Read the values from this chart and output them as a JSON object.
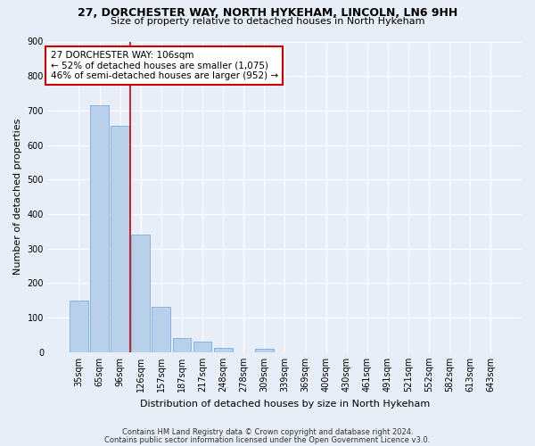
{
  "title1": "27, DORCHESTER WAY, NORTH HYKEHAM, LINCOLN, LN6 9HH",
  "title2": "Size of property relative to detached houses in North Hykeham",
  "xlabel": "Distribution of detached houses by size in North Hykeham",
  "ylabel": "Number of detached properties",
  "footnote1": "Contains HM Land Registry data © Crown copyright and database right 2024.",
  "footnote2": "Contains public sector information licensed under the Open Government Licence v3.0.",
  "bar_labels": [
    "35sqm",
    "65sqm",
    "96sqm",
    "126sqm",
    "157sqm",
    "187sqm",
    "217sqm",
    "248sqm",
    "278sqm",
    "309sqm",
    "339sqm",
    "369sqm",
    "400sqm",
    "430sqm",
    "461sqm",
    "491sqm",
    "521sqm",
    "552sqm",
    "582sqm",
    "613sqm",
    "643sqm"
  ],
  "bar_values": [
    150,
    715,
    655,
    340,
    130,
    42,
    30,
    13,
    0,
    10,
    0,
    0,
    0,
    0,
    0,
    0,
    0,
    0,
    0,
    0,
    0
  ],
  "bar_color": "#b8d0ea",
  "bar_edge_color": "#7aace0",
  "bg_color": "#e8eef8",
  "grid_color": "#ffffff",
  "vline_x": 2.48,
  "vline_color": "#cc0000",
  "annotation_text": "27 DORCHESTER WAY: 106sqm\n← 52% of detached houses are smaller (1,075)\n46% of semi-detached houses are larger (952) →",
  "annotation_box_color": "#ffffff",
  "annotation_box_edge_color": "#cc0000",
  "ylim": [
    0,
    900
  ],
  "yticks": [
    0,
    100,
    200,
    300,
    400,
    500,
    600,
    700,
    800,
    900
  ],
  "title1_fontsize": 9,
  "title2_fontsize": 8,
  "ylabel_fontsize": 8,
  "xlabel_fontsize": 8,
  "tick_fontsize": 7,
  "annot_fontsize": 7.5
}
